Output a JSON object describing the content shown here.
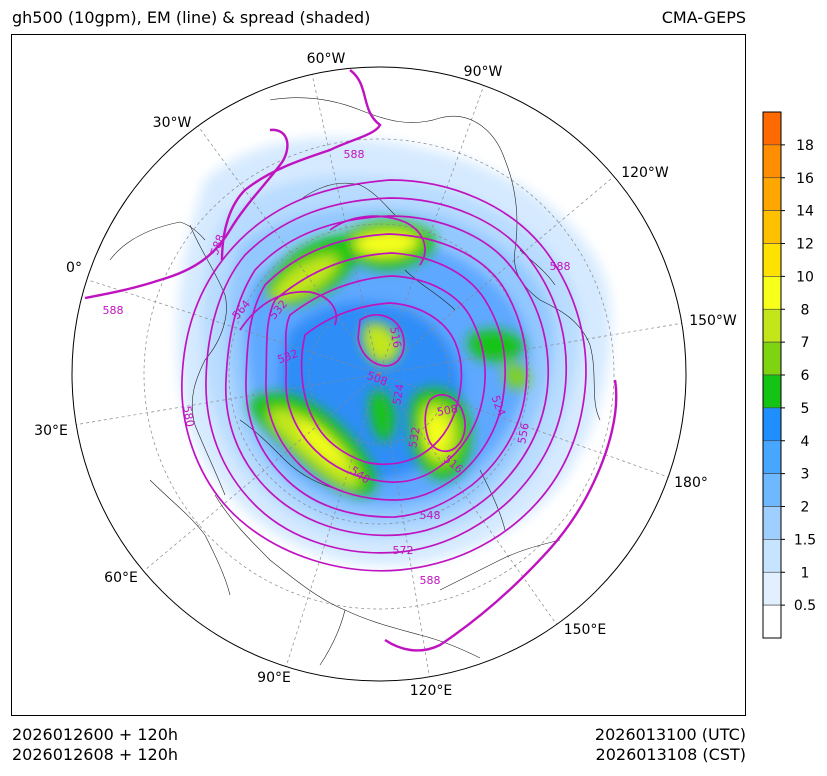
{
  "header": {
    "title_left": "gh500 (10gpm), EM (line) & spread (shaded)",
    "title_right": "CMA-GEPS"
  },
  "footer": {
    "init_utc": "2026012600 + 120h",
    "init_cst": "2026012608 + 120h",
    "valid_utc": "2026013100 (UTC)",
    "valid_cst": "2026013108 (CST)"
  },
  "map": {
    "projection": "north-polar-stereographic",
    "longitude_labels": [
      "60°W",
      "90°W",
      "30°W",
      "120°W",
      "0°",
      "150°W",
      "30°E",
      "180°",
      "60°E",
      "150°E",
      "90°E",
      "120°E"
    ],
    "contour_labels": [
      "588",
      "588",
      "588",
      "588",
      "588",
      "564",
      "532",
      "532",
      "516",
      "508",
      "524",
      "508",
      "532",
      "524",
      "516",
      "556",
      "580",
      "540",
      "548",
      "572"
    ],
    "colors": {
      "contour": "#c013c0",
      "land_outline": "#222222",
      "grid": "#888888"
    }
  },
  "colorbar": {
    "labels": [
      "18",
      "16",
      "14",
      "12",
      "10",
      "8",
      "7",
      "6",
      "5",
      "4",
      "3",
      "2",
      "1.5",
      "1",
      "0.5"
    ],
    "colors": [
      "#ff6a00",
      "#ff8f00",
      "#ffa600",
      "#ffc000",
      "#ffe100",
      "#f7ff1a",
      "#c2e61a",
      "#7fd412",
      "#14c414",
      "#1f8fff",
      "#47a6ff",
      "#6eb8ff",
      "#9ecfff",
      "#c7e4ff",
      "#e1efff",
      "#ffffff"
    ]
  }
}
